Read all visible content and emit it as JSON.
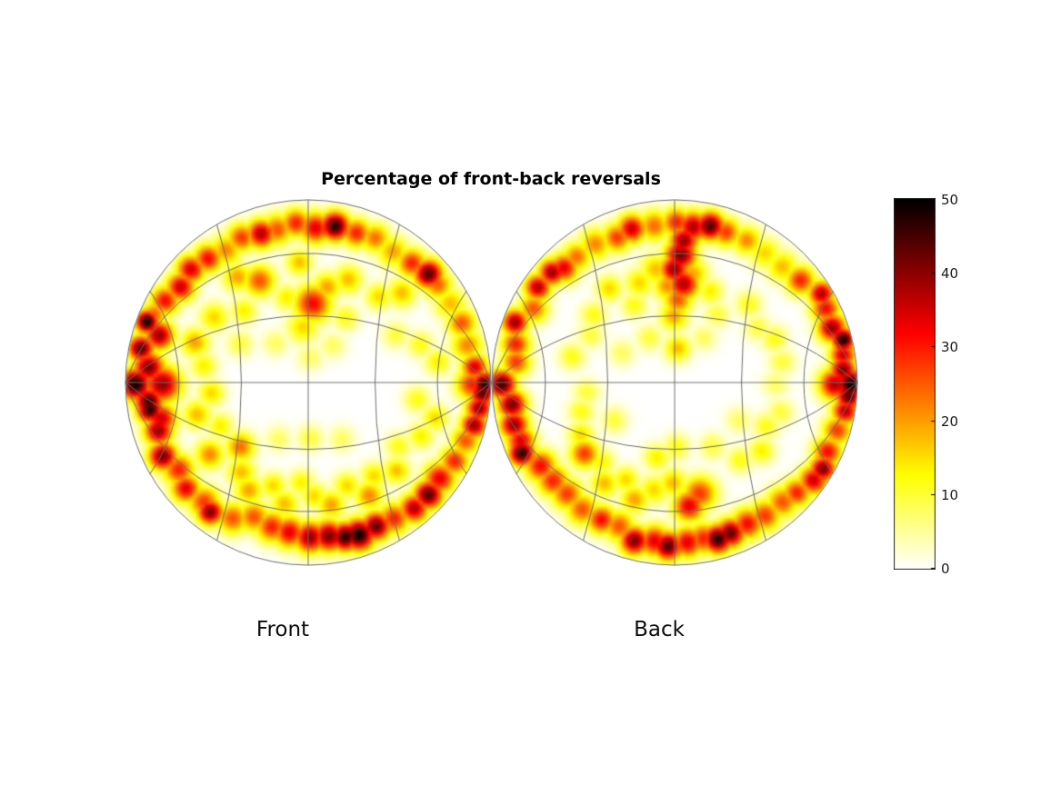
{
  "chart_data": {
    "type": "heatmap",
    "title": "Percentage of front-back reversals",
    "units": "percent",
    "value_range": [
      0,
      50
    ],
    "colormap": "hot-reversed (0=white, 10=yellow, 20=orange, 30=red, 40=dark red, 50=black)",
    "projection": "lambert-azimuthal hemisphere, poles at left/right vertices",
    "grid_step_deg": 30,
    "legend_position": "right-colorbar",
    "colorbar": {
      "min": 0,
      "max": 50,
      "ticks": [
        0,
        10,
        20,
        30,
        40,
        50
      ]
    },
    "blob_format": "[angle_deg_ccw_from_right_vertex, radius_fraction, value_percent, sigma_fraction]",
    "panels": [
      {
        "label": "Front",
        "blobs": [
          [
            0,
            0.97,
            48,
            0.05
          ],
          [
            0,
            0.9,
            30,
            0.06
          ],
          [
            6,
            0.92,
            35,
            0.05
          ],
          [
            14,
            0.9,
            22,
            0.06
          ],
          [
            22,
            0.91,
            26,
            0.055
          ],
          [
            30,
            0.9,
            18,
            0.06
          ],
          [
            38,
            0.9,
            25,
            0.055
          ],
          [
            43,
            0.9,
            45,
            0.055
          ],
          [
            50,
            0.88,
            30,
            0.055
          ],
          [
            58,
            0.87,
            20,
            0.06
          ],
          [
            66,
            0.89,
            24,
            0.055
          ],
          [
            73,
            0.88,
            30,
            0.055
          ],
          [
            81,
            0.89,
            48,
            0.055
          ],
          [
            88,
            0.87,
            34,
            0.06
          ],
          [
            95,
            0.9,
            30,
            0.055
          ],
          [
            102,
            0.88,
            26,
            0.06
          ],
          [
            108,
            0.88,
            38,
            0.055
          ],
          [
            115,
            0.9,
            28,
            0.055
          ],
          [
            122,
            0.88,
            22,
            0.06
          ],
          [
            129,
            0.9,
            32,
            0.055
          ],
          [
            136,
            0.92,
            35,
            0.055
          ],
          [
            143,
            0.9,
            36,
            0.055
          ],
          [
            150,
            0.93,
            32,
            0.055
          ],
          [
            156,
            0.95,
            26,
            0.05
          ],
          [
            159,
            0.97,
            50,
            0.045
          ],
          [
            162,
            0.88,
            40,
            0.055
          ],
          [
            168,
            0.96,
            45,
            0.05
          ],
          [
            174,
            0.9,
            42,
            0.06
          ],
          [
            180,
            0.97,
            50,
            0.06
          ],
          [
            180,
            0.82,
            40,
            0.07
          ],
          [
            186,
            0.9,
            46,
            0.055
          ],
          [
            189,
            0.9,
            48,
            0.05
          ],
          [
            193,
            0.85,
            36,
            0.06
          ],
          [
            197,
            0.88,
            40,
            0.055
          ],
          [
            206,
            0.91,
            42,
            0.055
          ],
          [
            213,
            0.87,
            30,
            0.06
          ],
          [
            220,
            0.9,
            34,
            0.055
          ],
          [
            228,
            0.88,
            28,
            0.06
          ],
          [
            232,
            0.9,
            42,
            0.05
          ],
          [
            240,
            0.86,
            26,
            0.06
          ],
          [
            247,
            0.8,
            26,
            0.06
          ],
          [
            255,
            0.82,
            30,
            0.06
          ],
          [
            262,
            0.83,
            34,
            0.06
          ],
          [
            270,
            0.85,
            40,
            0.06
          ],
          [
            277,
            0.85,
            42,
            0.06
          ],
          [
            283,
            0.87,
            48,
            0.055
          ],
          [
            288,
            0.88,
            50,
            0.06
          ],
          [
            295,
            0.87,
            44,
            0.055
          ],
          [
            302,
            0.88,
            30,
            0.06
          ],
          [
            310,
            0.9,
            38,
            0.055
          ],
          [
            317,
            0.9,
            45,
            0.055
          ],
          [
            324,
            0.89,
            34,
            0.06
          ],
          [
            332,
            0.91,
            30,
            0.055
          ],
          [
            340,
            0.92,
            26,
            0.055
          ],
          [
            346,
            0.94,
            40,
            0.05
          ],
          [
            352,
            0.95,
            40,
            0.05
          ],
          [
            357,
            0.96,
            44,
            0.05
          ],
          [
            88,
            0.45,
            32,
            0.07
          ],
          [
            97,
            0.32,
            16,
            0.06
          ],
          [
            80,
            0.55,
            20,
            0.055
          ],
          [
            70,
            0.62,
            18,
            0.055
          ],
          [
            62,
            0.42,
            12,
            0.05
          ],
          [
            52,
            0.62,
            16,
            0.05
          ],
          [
            45,
            0.72,
            18,
            0.055
          ],
          [
            116,
            0.64,
            26,
            0.06
          ],
          [
            124,
            0.72,
            20,
            0.055
          ],
          [
            132,
            0.55,
            14,
            0.05
          ],
          [
            145,
            0.65,
            16,
            0.055
          ],
          [
            150,
            0.45,
            10,
            0.05
          ],
          [
            160,
            0.68,
            20,
            0.055
          ],
          [
            170,
            0.6,
            14,
            0.05
          ],
          [
            105,
            0.5,
            14,
            0.05
          ],
          [
            95,
            0.68,
            18,
            0.05
          ],
          [
            30,
            0.55,
            10,
            0.05
          ],
          [
            20,
            0.65,
            12,
            0.05
          ],
          [
            10,
            0.72,
            14,
            0.05
          ],
          [
            185,
            0.55,
            16,
            0.05
          ],
          [
            195,
            0.65,
            18,
            0.055
          ],
          [
            205,
            0.55,
            14,
            0.05
          ],
          [
            215,
            0.68,
            22,
            0.055
          ],
          [
            222,
            0.52,
            24,
            0.055
          ],
          [
            232,
            0.62,
            18,
            0.055
          ],
          [
            240,
            0.68,
            20,
            0.055
          ],
          [
            250,
            0.6,
            16,
            0.05
          ],
          [
            258,
            0.68,
            18,
            0.055
          ],
          [
            265,
            0.55,
            14,
            0.05
          ],
          [
            272,
            0.62,
            16,
            0.05
          ],
          [
            280,
            0.68,
            20,
            0.055
          ],
          [
            290,
            0.6,
            16,
            0.05
          ],
          [
            298,
            0.7,
            22,
            0.055
          ],
          [
            305,
            0.62,
            16,
            0.05
          ],
          [
            315,
            0.68,
            18,
            0.05
          ],
          [
            325,
            0.6,
            12,
            0.05
          ],
          [
            335,
            0.68,
            14,
            0.05
          ],
          [
            345,
            0.72,
            16,
            0.05
          ],
          [
            352,
            0.6,
            12,
            0.05
          ],
          [
            270,
            0.3,
            10,
            0.05
          ],
          [
            240,
            0.35,
            8,
            0.05
          ],
          [
            300,
            0.35,
            8,
            0.05
          ],
          [
            90,
            0.15,
            8,
            0.05
          ],
          [
            130,
            0.3,
            8,
            0.05
          ],
          [
            60,
            0.25,
            8,
            0.05
          ]
        ]
      },
      {
        "label": "Back",
        "blobs": [
          [
            0,
            0.97,
            50,
            0.06
          ],
          [
            0,
            0.88,
            38,
            0.06
          ],
          [
            5,
            0.93,
            42,
            0.05
          ],
          [
            10,
            0.94,
            36,
            0.05
          ],
          [
            15,
            0.96,
            50,
            0.045
          ],
          [
            20,
            0.92,
            40,
            0.055
          ],
          [
            27,
            0.93,
            32,
            0.055
          ],
          [
            32,
            0.95,
            38,
            0.05
          ],
          [
            40,
            0.9,
            30,
            0.055
          ],
          [
            48,
            0.88,
            18,
            0.06
          ],
          [
            56,
            0.88,
            16,
            0.06
          ],
          [
            64,
            0.89,
            22,
            0.055
          ],
          [
            72,
            0.89,
            28,
            0.055
          ],
          [
            78,
            0.9,
            45,
            0.055
          ],
          [
            84,
            0.88,
            38,
            0.06
          ],
          [
            90,
            0.9,
            30,
            0.055
          ],
          [
            98,
            0.89,
            24,
            0.06
          ],
          [
            106,
            0.9,
            36,
            0.055
          ],
          [
            112,
            0.88,
            28,
            0.055
          ],
          [
            120,
            0.9,
            22,
            0.06
          ],
          [
            128,
            0.9,
            24,
            0.055
          ],
          [
            134,
            0.9,
            34,
            0.055
          ],
          [
            138,
            0.93,
            40,
            0.05
          ],
          [
            145,
            0.94,
            38,
            0.05
          ],
          [
            152,
            0.9,
            26,
            0.055
          ],
          [
            159,
            0.96,
            40,
            0.05
          ],
          [
            166,
            0.92,
            30,
            0.055
          ],
          [
            172,
            0.9,
            28,
            0.055
          ],
          [
            180,
            0.97,
            46,
            0.055
          ],
          [
            187,
            0.92,
            42,
            0.055
          ],
          [
            194,
            0.93,
            40,
            0.055
          ],
          [
            200,
            0.92,
            35,
            0.055
          ],
          [
            204,
            0.94,
            48,
            0.05
          ],
          [
            211,
            0.88,
            32,
            0.06
          ],
          [
            218,
            0.87,
            30,
            0.06
          ],
          [
            225,
            0.86,
            28,
            0.06
          ],
          [
            233,
            0.87,
            26,
            0.06
          ],
          [
            241,
            0.86,
            32,
            0.055
          ],
          [
            248,
            0.85,
            26,
            0.06
          ],
          [
            255,
            0.9,
            42,
            0.055
          ],
          [
            262,
            0.88,
            34,
            0.06
          ],
          [
            267,
            0.9,
            45,
            0.055
          ],
          [
            274,
            0.88,
            34,
            0.06
          ],
          [
            280,
            0.87,
            30,
            0.06
          ],
          [
            285,
            0.89,
            48,
            0.055
          ],
          [
            290,
            0.88,
            44,
            0.055
          ],
          [
            297,
            0.87,
            32,
            0.06
          ],
          [
            304,
            0.88,
            28,
            0.06
          ],
          [
            312,
            0.88,
            26,
            0.06
          ],
          [
            318,
            0.9,
            30,
            0.055
          ],
          [
            325,
            0.93,
            36,
            0.055
          ],
          [
            330,
            0.94,
            42,
            0.05
          ],
          [
            336,
            0.92,
            32,
            0.055
          ],
          [
            344,
            0.93,
            28,
            0.055
          ],
          [
            351,
            0.95,
            38,
            0.05
          ],
          [
            356,
            0.96,
            45,
            0.05
          ],
          [
            87,
            0.8,
            40,
            0.055
          ],
          [
            88,
            0.72,
            42,
            0.06
          ],
          [
            91,
            0.64,
            40,
            0.055
          ],
          [
            86,
            0.56,
            38,
            0.06
          ],
          [
            89,
            0.47,
            26,
            0.055
          ],
          [
            92,
            0.38,
            20,
            0.055
          ],
          [
            88,
            0.2,
            18,
            0.05
          ],
          [
            95,
            0.55,
            22,
            0.055
          ],
          [
            100,
            0.65,
            18,
            0.06
          ],
          [
            82,
            0.62,
            20,
            0.06
          ],
          [
            110,
            0.6,
            16,
            0.055
          ],
          [
            118,
            0.5,
            12,
            0.05
          ],
          [
            125,
            0.65,
            16,
            0.05
          ],
          [
            140,
            0.6,
            12,
            0.05
          ],
          [
            150,
            0.55,
            10,
            0.05
          ],
          [
            165,
            0.6,
            12,
            0.05
          ],
          [
            70,
            0.55,
            14,
            0.05
          ],
          [
            60,
            0.45,
            10,
            0.05
          ],
          [
            48,
            0.6,
            12,
            0.05
          ],
          [
            35,
            0.55,
            10,
            0.05
          ],
          [
            25,
            0.6,
            12,
            0.05
          ],
          [
            12,
            0.6,
            10,
            0.05
          ],
          [
            0,
            0.55,
            8,
            0.05
          ],
          [
            345,
            0.6,
            10,
            0.05
          ],
          [
            335,
            0.55,
            12,
            0.05
          ],
          [
            322,
            0.6,
            14,
            0.05
          ],
          [
            310,
            0.55,
            12,
            0.05
          ],
          [
            282,
            0.62,
            28,
            0.065
          ],
          [
            276,
            0.68,
            34,
            0.06
          ],
          [
            268,
            0.55,
            18,
            0.055
          ],
          [
            258,
            0.6,
            16,
            0.055
          ],
          [
            250,
            0.68,
            20,
            0.055
          ],
          [
            242,
            0.6,
            16,
            0.05
          ],
          [
            234,
            0.68,
            18,
            0.055
          ],
          [
            226,
            0.6,
            14,
            0.05
          ],
          [
            217,
            0.64,
            28,
            0.055
          ],
          [
            208,
            0.6,
            16,
            0.05
          ],
          [
            196,
            0.55,
            12,
            0.05
          ],
          [
            185,
            0.5,
            10,
            0.05
          ],
          [
            270,
            0.35,
            12,
            0.05
          ],
          [
            255,
            0.42,
            14,
            0.05
          ],
          [
            300,
            0.4,
            10,
            0.05
          ],
          [
            60,
            0.3,
            8,
            0.05
          ],
          [
            120,
            0.3,
            10,
            0.05
          ],
          [
            150,
            0.35,
            8,
            0.05
          ],
          [
            210,
            0.4,
            10,
            0.05
          ],
          [
            330,
            0.4,
            8,
            0.05
          ]
        ]
      }
    ]
  },
  "colors": {
    "background": "#ffffff",
    "grid": "#6e6e6e",
    "frame": "#262626",
    "text": "#000000"
  }
}
